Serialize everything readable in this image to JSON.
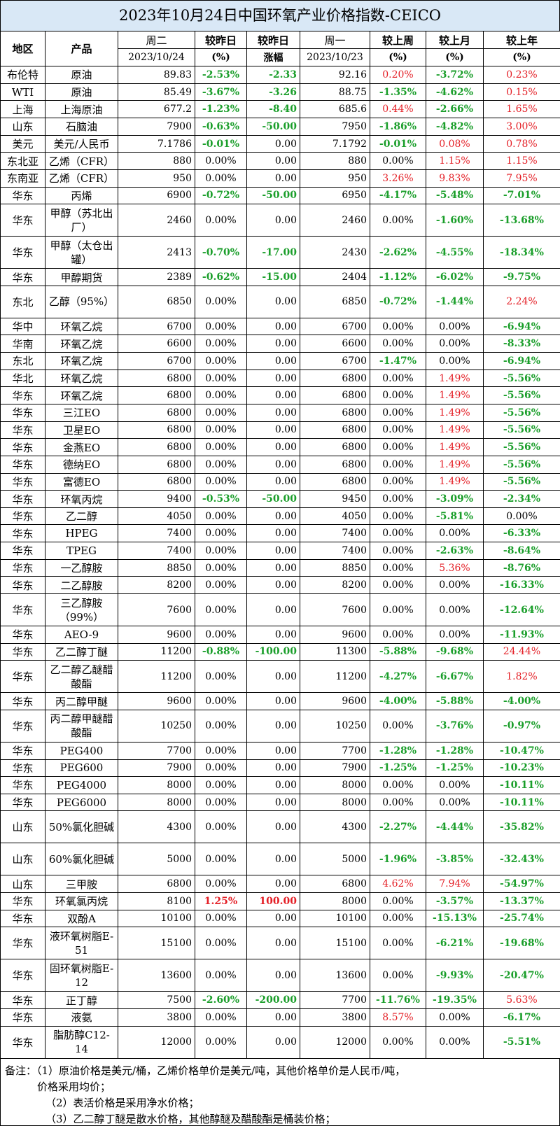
{
  "title": "2023年10月24日中国环氧产业价格指数-CEICO",
  "headers": {
    "region": "地区",
    "product": "产品",
    "tuesday": "周二",
    "tuesday_date": "2023/10/24",
    "vs_yesterday_pct": "较昨日",
    "vs_yesterday_pct_unit": "(%)",
    "vs_yesterday_abs": "较昨日",
    "vs_yesterday_abs_unit": "涨幅",
    "monday": "周一",
    "monday_date": "2023/10/23",
    "vs_last_week": "较上周",
    "vs_last_week_unit": "(%)",
    "vs_last_month": "较上月",
    "vs_last_month_unit": "(%)",
    "vs_last_year": "较上年",
    "vs_last_year_unit": "(%)"
  },
  "rows": [
    {
      "region": "布伦特",
      "product": "原油",
      "tue": "89.83",
      "dpct": "-2.53%",
      "dabs": "-2.33",
      "mon": "92.16",
      "wk": "0.20%",
      "mo": "-3.72%",
      "yr": "0.23%"
    },
    {
      "region": "WTI",
      "product": "原油",
      "tue": "85.49",
      "dpct": "-3.67%",
      "dabs": "-3.26",
      "mon": "88.75",
      "wk": "-1.35%",
      "mo": "-4.62%",
      "yr": "0.15%"
    },
    {
      "region": "上海",
      "product": "上海原油",
      "tue": "677.2",
      "dpct": "-1.23%",
      "dabs": "-8.40",
      "mon": "685.6",
      "wk": "0.44%",
      "mo": "-2.66%",
      "yr": "1.65%"
    },
    {
      "region": "山东",
      "product": "石脑油",
      "tue": "7900",
      "dpct": "-0.63%",
      "dabs": "-50.00",
      "mon": "7950",
      "wk": "-1.86%",
      "mo": "-4.82%",
      "yr": "3.00%"
    },
    {
      "region": "美元",
      "product": "美元/人民币",
      "tue": "7.1786",
      "dpct": "-0.01%",
      "dabs": "0.00",
      "mon": "7.1792",
      "wk": "-0.01%",
      "mo": "0.08%",
      "yr": "0.78%"
    },
    {
      "region": "东北亚",
      "product": "乙烯（CFR）",
      "tue": "880",
      "dpct": "0.00%",
      "dabs": "0.00",
      "mon": "880",
      "wk": "0.00%",
      "mo": "1.15%",
      "yr": "1.15%"
    },
    {
      "region": "东南亚",
      "product": "乙烯（CFR）",
      "tue": "950",
      "dpct": "0.00%",
      "dabs": "0.00",
      "mon": "950",
      "wk": "3.26%",
      "mo": "9.83%",
      "yr": "7.95%"
    },
    {
      "region": "华东",
      "product": "丙烯",
      "tue": "6900",
      "dpct": "-0.72%",
      "dabs": "-50.00",
      "mon": "6950",
      "wk": "-4.17%",
      "mo": "-5.48%",
      "yr": "-7.01%"
    },
    {
      "region": "华东",
      "product": "甲醇（苏北出厂）",
      "tue": "2460",
      "dpct": "0.00%",
      "dabs": "0.00",
      "mon": "2460",
      "wk": "0.00%",
      "mo": "-1.60%",
      "yr": "-13.68%",
      "tall": true
    },
    {
      "region": "华东",
      "product": "甲醇（太仓出罐）",
      "tue": "2413",
      "dpct": "-0.70%",
      "dabs": "-17.00",
      "mon": "2430",
      "wk": "-2.62%",
      "mo": "-4.55%",
      "yr": "-18.34%",
      "tall": true
    },
    {
      "region": "华东",
      "product": "甲醇期货",
      "tue": "2389",
      "dpct": "-0.62%",
      "dabs": "-15.00",
      "mon": "2404",
      "wk": "-1.12%",
      "mo": "-6.02%",
      "yr": "-9.75%"
    },
    {
      "region": "东北",
      "product": "乙醇（95%）",
      "tue": "6850",
      "dpct": "0.00%",
      "dabs": "0.00",
      "mon": "6850",
      "wk": "-0.72%",
      "mo": "-1.44%",
      "yr": "2.24%",
      "tall": true
    },
    {
      "region": "华中",
      "product": "环氧乙烷",
      "tue": "6700",
      "dpct": "0.00%",
      "dabs": "0.00",
      "mon": "6700",
      "wk": "0.00%",
      "mo": "0.00%",
      "yr": "-6.94%"
    },
    {
      "region": "华南",
      "product": "环氧乙烷",
      "tue": "6600",
      "dpct": "0.00%",
      "dabs": "0.00",
      "mon": "6600",
      "wk": "0.00%",
      "mo": "0.00%",
      "yr": "-8.33%"
    },
    {
      "region": "东北",
      "product": "环氧乙烷",
      "tue": "6700",
      "dpct": "0.00%",
      "dabs": "0.00",
      "mon": "6700",
      "wk": "-1.47%",
      "mo": "0.00%",
      "yr": "-6.94%"
    },
    {
      "region": "华北",
      "product": "环氧乙烷",
      "tue": "6800",
      "dpct": "0.00%",
      "dabs": "0.00",
      "mon": "6800",
      "wk": "0.00%",
      "mo": "1.49%",
      "yr": "-5.56%"
    },
    {
      "region": "华东",
      "product": "环氧乙烷",
      "tue": "6800",
      "dpct": "0.00%",
      "dabs": "0.00",
      "mon": "6800",
      "wk": "0.00%",
      "mo": "1.49%",
      "yr": "-5.56%"
    },
    {
      "region": "华东",
      "product": "三江EO",
      "tue": "6800",
      "dpct": "0.00%",
      "dabs": "0.00",
      "mon": "6800",
      "wk": "0.00%",
      "mo": "1.49%",
      "yr": "-5.56%"
    },
    {
      "region": "华东",
      "product": "卫星EO",
      "tue": "6800",
      "dpct": "0.00%",
      "dabs": "0.00",
      "mon": "6800",
      "wk": "0.00%",
      "mo": "1.49%",
      "yr": "-5.56%"
    },
    {
      "region": "华东",
      "product": "金燕EO",
      "tue": "6800",
      "dpct": "0.00%",
      "dabs": "0.00",
      "mon": "6800",
      "wk": "0.00%",
      "mo": "1.49%",
      "yr": "-5.56%"
    },
    {
      "region": "华东",
      "product": "德纳EO",
      "tue": "6800",
      "dpct": "0.00%",
      "dabs": "0.00",
      "mon": "6800",
      "wk": "0.00%",
      "mo": "1.49%",
      "yr": "-5.56%"
    },
    {
      "region": "华东",
      "product": "富德EO",
      "tue": "6800",
      "dpct": "0.00%",
      "dabs": "0.00",
      "mon": "6800",
      "wk": "0.00%",
      "mo": "1.49%",
      "yr": "-5.56%"
    },
    {
      "region": "华东",
      "product": "环氧丙烷",
      "tue": "9400",
      "dpct": "-0.53%",
      "dabs": "-50.00",
      "mon": "9450",
      "wk": "0.00%",
      "mo": "-3.09%",
      "yr": "-2.34%"
    },
    {
      "region": "华东",
      "product": "乙二醇",
      "tue": "4050",
      "dpct": "0.00%",
      "dabs": "0.00",
      "mon": "4050",
      "wk": "0.00%",
      "mo": "-5.81%",
      "yr": "0.00%"
    },
    {
      "region": "华东",
      "product": "HPEG",
      "tue": "7400",
      "dpct": "0.00%",
      "dabs": "0.00",
      "mon": "7400",
      "wk": "0.00%",
      "mo": "0.00%",
      "yr": "-6.33%"
    },
    {
      "region": "华东",
      "product": "TPEG",
      "tue": "7400",
      "dpct": "0.00%",
      "dabs": "0.00",
      "mon": "7400",
      "wk": "0.00%",
      "mo": "-2.63%",
      "yr": "-8.64%"
    },
    {
      "region": "华东",
      "product": "一乙醇胺",
      "tue": "8850",
      "dpct": "0.00%",
      "dabs": "0.00",
      "mon": "8850",
      "wk": "0.00%",
      "mo": "5.36%",
      "yr": "-8.76%"
    },
    {
      "region": "华东",
      "product": "二乙醇胺",
      "tue": "8200",
      "dpct": "0.00%",
      "dabs": "0.00",
      "mon": "8200",
      "wk": "0.00%",
      "mo": "0.00%",
      "yr": "-16.33%"
    },
    {
      "region": "华东",
      "product": "三乙醇胺（99%）",
      "tue": "7600",
      "dpct": "0.00%",
      "dabs": "0.00",
      "mon": "7600",
      "wk": "0.00%",
      "mo": "0.00%",
      "yr": "-12.64%",
      "tall": true
    },
    {
      "region": "华东",
      "product": "AEO-9",
      "tue": "9600",
      "dpct": "0.00%",
      "dabs": "0.00",
      "mon": "9600",
      "wk": "0.00%",
      "mo": "0.00%",
      "yr": "-11.93%"
    },
    {
      "region": "华东",
      "product": "乙二醇丁醚",
      "tue": "11200",
      "dpct": "-0.88%",
      "dabs": "-100.00",
      "mon": "11300",
      "wk": "-5.88%",
      "mo": "-9.68%",
      "yr": "24.44%"
    },
    {
      "region": "华东",
      "product": "乙二醇乙醚醋酸酯",
      "tue": "11200",
      "dpct": "0.00%",
      "dabs": "0.00",
      "mon": "11200",
      "wk": "-4.27%",
      "mo": "-6.67%",
      "yr": "1.82%",
      "tall": true
    },
    {
      "region": "华东",
      "product": "丙二醇甲醚",
      "tue": "9600",
      "dpct": "0.00%",
      "dabs": "0.00",
      "mon": "9600",
      "wk": "-4.00%",
      "mo": "-5.88%",
      "yr": "-4.00%"
    },
    {
      "region": "华东",
      "product": "丙二醇甲醚醋酸酯",
      "tue": "10250",
      "dpct": "0.00%",
      "dabs": "0.00",
      "mon": "10250",
      "wk": "0.00%",
      "mo": "-3.76%",
      "yr": "-0.97%",
      "tall": true
    },
    {
      "region": "华东",
      "product": "PEG400",
      "tue": "7700",
      "dpct": "0.00%",
      "dabs": "0.00",
      "mon": "7700",
      "wk": "-1.28%",
      "mo": "-1.28%",
      "yr": "-10.47%"
    },
    {
      "region": "华东",
      "product": "PEG600",
      "tue": "7900",
      "dpct": "0.00%",
      "dabs": "0.00",
      "mon": "7900",
      "wk": "-1.25%",
      "mo": "-1.25%",
      "yr": "-10.23%"
    },
    {
      "region": "华东",
      "product": "PEG4000",
      "tue": "8000",
      "dpct": "0.00%",
      "dabs": "0.00",
      "mon": "8000",
      "wk": "0.00%",
      "mo": "0.00%",
      "yr": "-10.11%"
    },
    {
      "region": "华东",
      "product": "PEG6000",
      "tue": "8000",
      "dpct": "0.00%",
      "dabs": "0.00",
      "mon": "8000",
      "wk": "0.00%",
      "mo": "0.00%",
      "yr": "-10.11%"
    },
    {
      "region": "山东",
      "product": "50%氯化胆碱",
      "tue": "4300",
      "dpct": "0.00%",
      "dabs": "0.00",
      "mon": "4300",
      "wk": "-2.27%",
      "mo": "-4.44%",
      "yr": "-35.82%",
      "tall": true
    },
    {
      "region": "山东",
      "product": "60%氯化胆碱",
      "tue": "5000",
      "dpct": "0.00%",
      "dabs": "0.00",
      "mon": "5000",
      "wk": "-1.96%",
      "mo": "-3.85%",
      "yr": "-32.43%",
      "tall": true
    },
    {
      "region": "山东",
      "product": "三甲胺",
      "tue": "6800",
      "dpct": "0.00%",
      "dabs": "0.00",
      "mon": "6800",
      "wk": "4.62%",
      "mo": "7.94%",
      "yr": "-54.97%"
    },
    {
      "region": "华东",
      "product": "环氧氯丙烷",
      "tue": "8100",
      "dpct": "1.25%",
      "dabs": "100.00",
      "mon": "8000",
      "wk": "0.00%",
      "mo": "-3.57%",
      "yr": "-13.37%"
    },
    {
      "region": "华东",
      "product": "双酚A",
      "tue": "10100",
      "dpct": "0.00%",
      "dabs": "0.00",
      "mon": "10100",
      "wk": "0.00%",
      "mo": "-15.13%",
      "yr": "-25.74%"
    },
    {
      "region": "华东",
      "product": "液环氧树脂E-51",
      "tue": "15100",
      "dpct": "0.00%",
      "dabs": "0.00",
      "mon": "15100",
      "wk": "0.00%",
      "mo": "-6.21%",
      "yr": "-19.68%",
      "tall": true
    },
    {
      "region": "华东",
      "product": "固环氧树脂E-12",
      "tue": "13600",
      "dpct": "0.00%",
      "dabs": "0.00",
      "mon": "13600",
      "wk": "0.00%",
      "mo": "-9.93%",
      "yr": "-20.47%",
      "tall": true
    },
    {
      "region": "华东",
      "product": "正丁醇",
      "tue": "7500",
      "dpct": "-2.60%",
      "dabs": "-200.00",
      "mon": "7700",
      "wk": "-11.76%",
      "mo": "-19.35%",
      "yr": "5.63%"
    },
    {
      "region": "华东",
      "product": "液氨",
      "tue": "3800",
      "dpct": "0.00%",
      "dabs": "0.00",
      "mon": "3800",
      "wk": "8.57%",
      "mo": "0.00%",
      "yr": "-6.17%"
    },
    {
      "region": "华东",
      "product": "脂肪醇C12-14",
      "tue": "12000",
      "dpct": "0.00%",
      "dabs": "0.00",
      "mon": "12000",
      "wk": "0.00%",
      "mo": "0.00%",
      "yr": "-5.51%",
      "tall": true
    }
  ],
  "notes": {
    "line1": "备注：（1）原油价格是美元/桶，乙烯价格单价是美元/吨，其他价格单价是人民币/吨，",
    "line2": "价格采用均价；",
    "line3": "（2）表活价格是采用净水价格；",
    "line4": "（3）乙二醇丁醚是散水价格，其他醇醚及醋酸酯是桶装价格；"
  },
  "colors": {
    "header_bg": "#d9e8f6",
    "negative": "#1a9e2a",
    "positive": "#e41e25"
  }
}
